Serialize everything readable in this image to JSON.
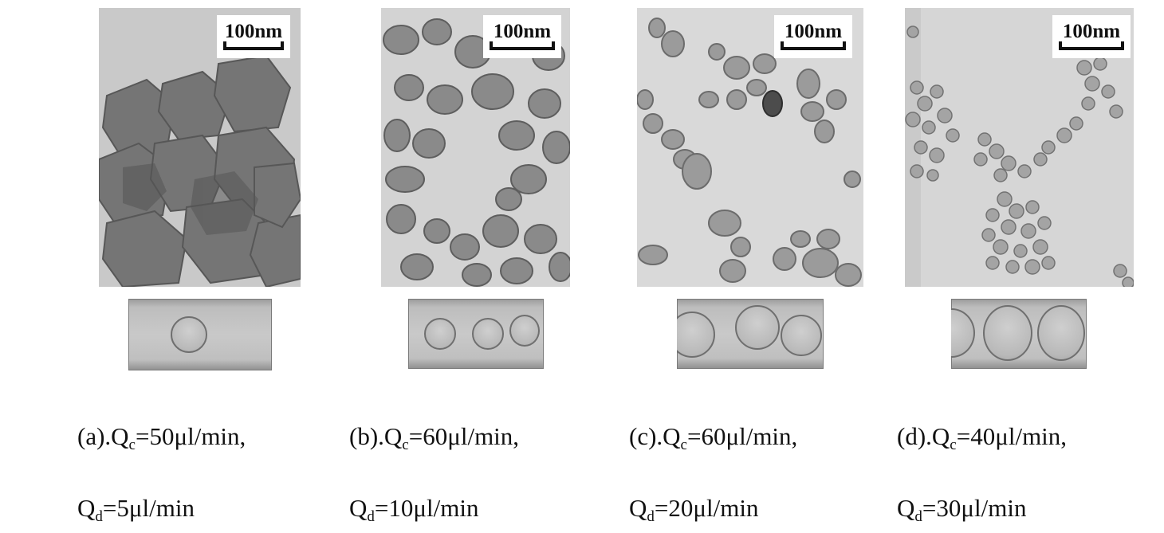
{
  "figure": {
    "panels": [
      {
        "id": "a",
        "scale_bar": "100nm",
        "caption_line1_prefix": "(a).Q",
        "caption_line1_sub": "c",
        "caption_line1_suffix": "=50μl/min,",
        "caption_line2_prefix": "Q",
        "caption_line2_sub": "d",
        "caption_line2_suffix": "=5μl/min"
      },
      {
        "id": "b",
        "scale_bar": "100nm",
        "caption_line1_prefix": "(b).Q",
        "caption_line1_sub": "c",
        "caption_line1_suffix": "=60μl/min,",
        "caption_line2_prefix": "Q",
        "caption_line2_sub": "d",
        "caption_line2_suffix": "=10μl/min"
      },
      {
        "id": "c",
        "scale_bar": "100nm",
        "caption_line1_prefix": "(c).Q",
        "caption_line1_sub": "c",
        "caption_line1_suffix": "=60μl/min,",
        "caption_line2_prefix": "Q",
        "caption_line2_sub": "d",
        "caption_line2_suffix": "=20μl/min"
      },
      {
        "id": "d",
        "scale_bar": "100nm",
        "caption_line1_prefix": "(d).Q",
        "caption_line1_sub": "c",
        "caption_line1_suffix": "=40μl/min,",
        "caption_line2_prefix": "Q",
        "caption_line2_sub": "d",
        "caption_line2_suffix": "=30μl/min"
      }
    ]
  }
}
